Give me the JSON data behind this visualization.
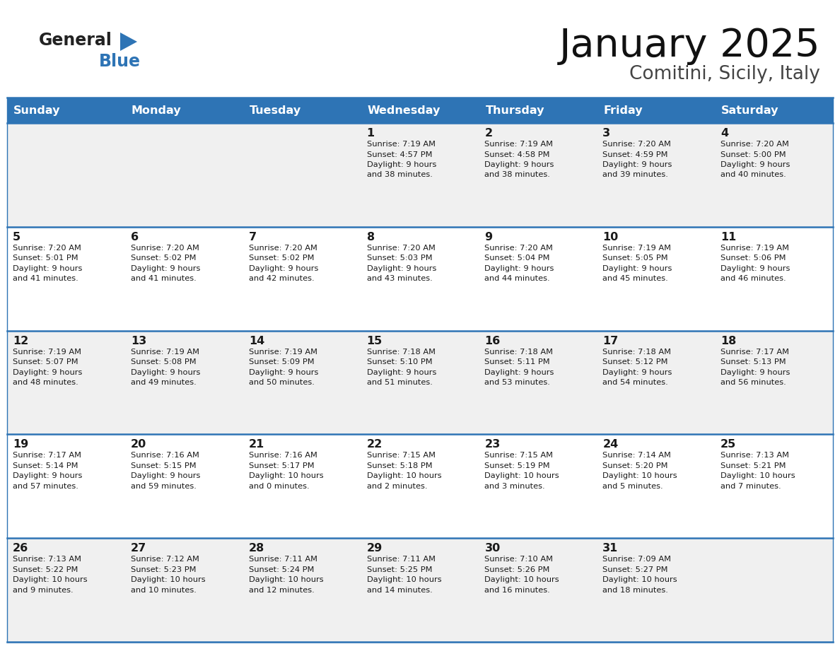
{
  "title": "January 2025",
  "subtitle": "Comitini, Sicily, Italy",
  "header_bg": "#2e74b5",
  "header_text": "#ffffff",
  "row_bg_odd": "#f0f0f0",
  "row_bg_even": "#ffffff",
  "sep_color": "#2e74b5",
  "day_names": [
    "Sunday",
    "Monday",
    "Tuesday",
    "Wednesday",
    "Thursday",
    "Friday",
    "Saturday"
  ],
  "days": [
    {
      "day": 1,
      "col": 3,
      "row": 0,
      "sunrise": "7:19 AM",
      "sunset": "4:57 PM",
      "daylight_line1": "9 hours",
      "daylight_line2": "and 38 minutes."
    },
    {
      "day": 2,
      "col": 4,
      "row": 0,
      "sunrise": "7:19 AM",
      "sunset": "4:58 PM",
      "daylight_line1": "9 hours",
      "daylight_line2": "and 38 minutes."
    },
    {
      "day": 3,
      "col": 5,
      "row": 0,
      "sunrise": "7:20 AM",
      "sunset": "4:59 PM",
      "daylight_line1": "9 hours",
      "daylight_line2": "and 39 minutes."
    },
    {
      "day": 4,
      "col": 6,
      "row": 0,
      "sunrise": "7:20 AM",
      "sunset": "5:00 PM",
      "daylight_line1": "9 hours",
      "daylight_line2": "and 40 minutes."
    },
    {
      "day": 5,
      "col": 0,
      "row": 1,
      "sunrise": "7:20 AM",
      "sunset": "5:01 PM",
      "daylight_line1": "9 hours",
      "daylight_line2": "and 41 minutes."
    },
    {
      "day": 6,
      "col": 1,
      "row": 1,
      "sunrise": "7:20 AM",
      "sunset": "5:02 PM",
      "daylight_line1": "9 hours",
      "daylight_line2": "and 41 minutes."
    },
    {
      "day": 7,
      "col": 2,
      "row": 1,
      "sunrise": "7:20 AM",
      "sunset": "5:02 PM",
      "daylight_line1": "9 hours",
      "daylight_line2": "and 42 minutes."
    },
    {
      "day": 8,
      "col": 3,
      "row": 1,
      "sunrise": "7:20 AM",
      "sunset": "5:03 PM",
      "daylight_line1": "9 hours",
      "daylight_line2": "and 43 minutes."
    },
    {
      "day": 9,
      "col": 4,
      "row": 1,
      "sunrise": "7:20 AM",
      "sunset": "5:04 PM",
      "daylight_line1": "9 hours",
      "daylight_line2": "and 44 minutes."
    },
    {
      "day": 10,
      "col": 5,
      "row": 1,
      "sunrise": "7:19 AM",
      "sunset": "5:05 PM",
      "daylight_line1": "9 hours",
      "daylight_line2": "and 45 minutes."
    },
    {
      "day": 11,
      "col": 6,
      "row": 1,
      "sunrise": "7:19 AM",
      "sunset": "5:06 PM",
      "daylight_line1": "9 hours",
      "daylight_line2": "and 46 minutes."
    },
    {
      "day": 12,
      "col": 0,
      "row": 2,
      "sunrise": "7:19 AM",
      "sunset": "5:07 PM",
      "daylight_line1": "9 hours",
      "daylight_line2": "and 48 minutes."
    },
    {
      "day": 13,
      "col": 1,
      "row": 2,
      "sunrise": "7:19 AM",
      "sunset": "5:08 PM",
      "daylight_line1": "9 hours",
      "daylight_line2": "and 49 minutes."
    },
    {
      "day": 14,
      "col": 2,
      "row": 2,
      "sunrise": "7:19 AM",
      "sunset": "5:09 PM",
      "daylight_line1": "9 hours",
      "daylight_line2": "and 50 minutes."
    },
    {
      "day": 15,
      "col": 3,
      "row": 2,
      "sunrise": "7:18 AM",
      "sunset": "5:10 PM",
      "daylight_line1": "9 hours",
      "daylight_line2": "and 51 minutes."
    },
    {
      "day": 16,
      "col": 4,
      "row": 2,
      "sunrise": "7:18 AM",
      "sunset": "5:11 PM",
      "daylight_line1": "9 hours",
      "daylight_line2": "and 53 minutes."
    },
    {
      "day": 17,
      "col": 5,
      "row": 2,
      "sunrise": "7:18 AM",
      "sunset": "5:12 PM",
      "daylight_line1": "9 hours",
      "daylight_line2": "and 54 minutes."
    },
    {
      "day": 18,
      "col": 6,
      "row": 2,
      "sunrise": "7:17 AM",
      "sunset": "5:13 PM",
      "daylight_line1": "9 hours",
      "daylight_line2": "and 56 minutes."
    },
    {
      "day": 19,
      "col": 0,
      "row": 3,
      "sunrise": "7:17 AM",
      "sunset": "5:14 PM",
      "daylight_line1": "9 hours",
      "daylight_line2": "and 57 minutes."
    },
    {
      "day": 20,
      "col": 1,
      "row": 3,
      "sunrise": "7:16 AM",
      "sunset": "5:15 PM",
      "daylight_line1": "9 hours",
      "daylight_line2": "and 59 minutes."
    },
    {
      "day": 21,
      "col": 2,
      "row": 3,
      "sunrise": "7:16 AM",
      "sunset": "5:17 PM",
      "daylight_line1": "10 hours",
      "daylight_line2": "and 0 minutes."
    },
    {
      "day": 22,
      "col": 3,
      "row": 3,
      "sunrise": "7:15 AM",
      "sunset": "5:18 PM",
      "daylight_line1": "10 hours",
      "daylight_line2": "and 2 minutes."
    },
    {
      "day": 23,
      "col": 4,
      "row": 3,
      "sunrise": "7:15 AM",
      "sunset": "5:19 PM",
      "daylight_line1": "10 hours",
      "daylight_line2": "and 3 minutes."
    },
    {
      "day": 24,
      "col": 5,
      "row": 3,
      "sunrise": "7:14 AM",
      "sunset": "5:20 PM",
      "daylight_line1": "10 hours",
      "daylight_line2": "and 5 minutes."
    },
    {
      "day": 25,
      "col": 6,
      "row": 3,
      "sunrise": "7:13 AM",
      "sunset": "5:21 PM",
      "daylight_line1": "10 hours",
      "daylight_line2": "and 7 minutes."
    },
    {
      "day": 26,
      "col": 0,
      "row": 4,
      "sunrise": "7:13 AM",
      "sunset": "5:22 PM",
      "daylight_line1": "10 hours",
      "daylight_line2": "and 9 minutes."
    },
    {
      "day": 27,
      "col": 1,
      "row": 4,
      "sunrise": "7:12 AM",
      "sunset": "5:23 PM",
      "daylight_line1": "10 hours",
      "daylight_line2": "and 10 minutes."
    },
    {
      "day": 28,
      "col": 2,
      "row": 4,
      "sunrise": "7:11 AM",
      "sunset": "5:24 PM",
      "daylight_line1": "10 hours",
      "daylight_line2": "and 12 minutes."
    },
    {
      "day": 29,
      "col": 3,
      "row": 4,
      "sunrise": "7:11 AM",
      "sunset": "5:25 PM",
      "daylight_line1": "10 hours",
      "daylight_line2": "and 14 minutes."
    },
    {
      "day": 30,
      "col": 4,
      "row": 4,
      "sunrise": "7:10 AM",
      "sunset": "5:26 PM",
      "daylight_line1": "10 hours",
      "daylight_line2": "and 16 minutes."
    },
    {
      "day": 31,
      "col": 5,
      "row": 4,
      "sunrise": "7:09 AM",
      "sunset": "5:27 PM",
      "daylight_line1": "10 hours",
      "daylight_line2": "and 18 minutes."
    }
  ]
}
